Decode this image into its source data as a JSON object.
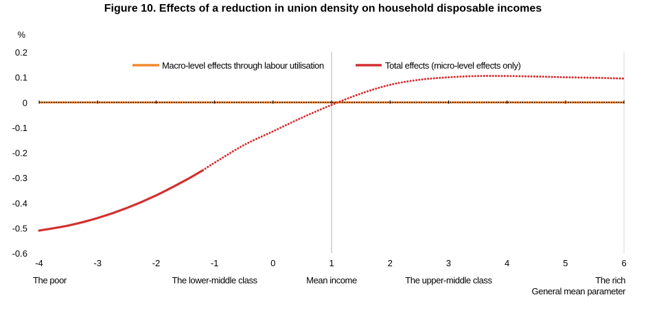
{
  "chart_data": {
    "type": "line",
    "title": "Figure 10.  Effects of a reduction in union density on household disposable incomes",
    "ylabel": "%",
    "xlabel": "General mean parameter",
    "xlim": [
      -4,
      6
    ],
    "ylim": [
      -0.6,
      0.2
    ],
    "x_ticks": [
      "-4",
      "-3",
      "-2",
      "-1",
      "0",
      "1",
      "2",
      "3",
      "4",
      "5",
      "6"
    ],
    "y_ticks": [
      "0.2",
      "0.1",
      "0",
      "-0.1",
      "-0.2",
      "-0.3",
      "-0.4",
      "-0.5",
      "-0.6"
    ],
    "category_labels": [
      {
        "x": -4,
        "label": "The poor"
      },
      {
        "x": -1,
        "label": "The lower-middle class"
      },
      {
        "x": 1,
        "label": "Mean income"
      },
      {
        "x": 3,
        "label": "The upper-middle class"
      },
      {
        "x": 6,
        "label": "The rich"
      }
    ],
    "grid": "vertical-at-x-1",
    "legend_position": "top-center",
    "series": [
      {
        "name": "Macro-level effects through labour utilisation",
        "color": "#F0892F",
        "style": "solid",
        "x": [
          -4,
          -3,
          -2,
          -1,
          0,
          1,
          2,
          3,
          4,
          5,
          6
        ],
        "y": [
          0,
          0,
          0,
          0,
          0,
          0,
          0,
          0,
          0,
          0,
          0
        ]
      },
      {
        "name": "Total effects (micro-level effects only)",
        "color": "#D32F2F",
        "style": "solid-then-dotted",
        "dotted_from_x": -1.2,
        "x": [
          -4,
          -3.5,
          -3,
          -2.5,
          -2,
          -1.5,
          -1.2,
          -1,
          -0.5,
          0,
          0.5,
          1,
          1.5,
          2,
          2.5,
          3,
          3.5,
          4,
          4.5,
          5,
          5.5,
          6
        ],
        "y": [
          -0.51,
          -0.49,
          -0.46,
          -0.42,
          -0.37,
          -0.31,
          -0.27,
          -0.24,
          -0.17,
          -0.115,
          -0.06,
          -0.01,
          0.035,
          0.07,
          0.09,
          0.1,
          0.105,
          0.105,
          0.103,
          0.1,
          0.098,
          0.095
        ]
      }
    ],
    "reference_line": {
      "y": 0,
      "color": "#000000",
      "style": "dotted"
    }
  }
}
